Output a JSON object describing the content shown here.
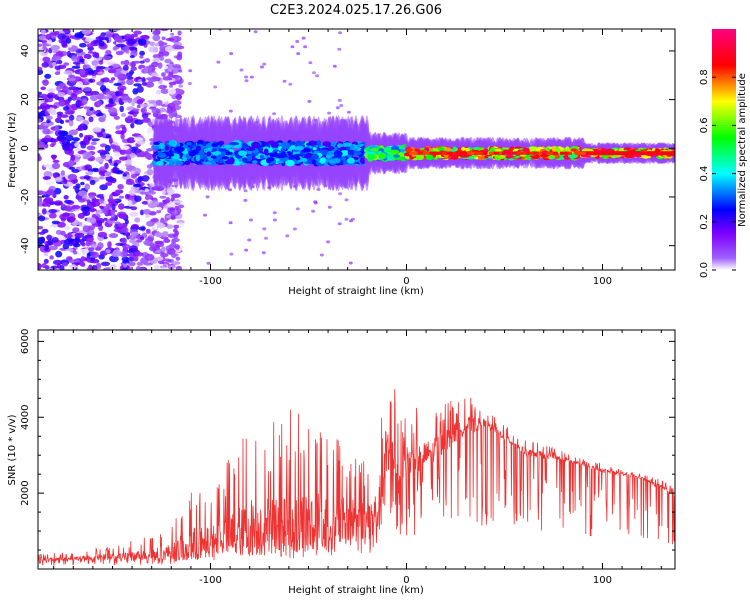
{
  "title": "C2E3.2024.025.17.26.G06",
  "chart_data": [
    {
      "type": "heatmap",
      "xlabel": "Height of straight line (km)",
      "ylabel": "Frequency (Hz)",
      "xlim": [
        -188,
        137
      ],
      "ylim": [
        -50,
        49
      ],
      "x_ticks": [
        -100,
        0,
        100
      ],
      "y_ticks": [
        -40,
        -20,
        0,
        20,
        40
      ],
      "colorbar": {
        "label": "Normalized spectral amplitude",
        "range": [
          0,
          1
        ],
        "ticks": [
          0.0,
          0.2,
          0.4,
          0.6,
          0.8
        ],
        "colormap": [
          "#ffffff",
          "#7f00ff",
          "#0000ff",
          "#00ffff",
          "#00ff00",
          "#ffff00",
          "#ff0000",
          "#ff0080"
        ]
      },
      "signal_band": {
        "start_height_km": -128,
        "center_frequency_hz": -2,
        "segments": [
          {
            "x_from": -128,
            "x_to": -20,
            "spread_hz": 7,
            "amplitude": 0.35
          },
          {
            "x_from": -20,
            "x_to": 0,
            "spread_hz": 4,
            "amplitude": 0.55
          },
          {
            "x_from": 0,
            "x_to": 90,
            "spread_hz": 3,
            "amplitude": 0.85
          },
          {
            "x_from": 90,
            "x_to": 137,
            "spread_hz": 2,
            "amplitude": 0.95
          }
        ]
      },
      "noise_region": {
        "x_from": -188,
        "x_to": -125,
        "amplitude": 0.25
      }
    },
    {
      "type": "line",
      "xlabel": "Height of straight line (km)",
      "ylabel": "SNR (10 * v/v)",
      "xlim": [
        -188,
        137
      ],
      "ylim": [
        0,
        6300
      ],
      "x_ticks": [
        -100,
        0,
        100
      ],
      "y_ticks": [
        2000,
        4000,
        6000
      ],
      "color": "#ee3333",
      "series": [
        {
          "x": [
            -188,
            -170,
            -150,
            -130,
            -120,
            -110,
            -100,
            -90,
            -80,
            -70,
            -60,
            -50,
            -40,
            -30,
            -20,
            -14,
            -12,
            -8,
            -4,
            0,
            10,
            20,
            30,
            40,
            50,
            60,
            70,
            80,
            90,
            100,
            110,
            120,
            130,
            137
          ],
          "values": [
            250,
            280,
            320,
            380,
            450,
            600,
            750,
            900,
            1100,
            1200,
            1150,
            1200,
            1200,
            1250,
            1300,
            1500,
            2700,
            3100,
            2400,
            2800,
            3000,
            3400,
            3800,
            3800,
            3500,
            3100,
            3000,
            2900,
            2750,
            2600,
            2500,
            2400,
            2150,
            1950
          ],
          "spike_max": [
            400,
            450,
            600,
            900,
            1200,
            2300,
            1900,
            3000,
            3700,
            3900,
            4300,
            4100,
            3800,
            3300,
            3000,
            3600,
            6300,
            5500,
            4200,
            4300,
            4200,
            4400,
            4600,
            4300,
            3800,
            3400,
            3300,
            3100,
            2900,
            2800,
            2600,
            2500,
            2350,
            2200
          ]
        }
      ]
    }
  ]
}
